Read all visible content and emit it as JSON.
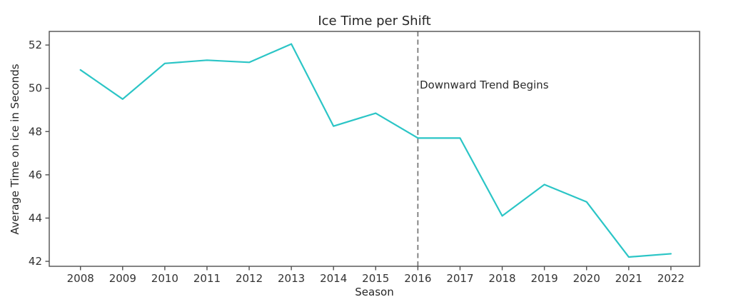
{
  "chart_data": {
    "type": "line",
    "title": "Ice Time per Shift",
    "xlabel": "Season",
    "ylabel": "Average Time on ice in Seconds",
    "categories": [
      2008,
      2009,
      2010,
      2011,
      2012,
      2013,
      2014,
      2015,
      2016,
      2017,
      2018,
      2019,
      2020,
      2021,
      2022
    ],
    "values": [
      50.85,
      49.5,
      51.15,
      51.3,
      51.2,
      52.05,
      48.25,
      48.85,
      47.7,
      47.7,
      44.1,
      45.55,
      44.75,
      42.2,
      42.35
    ],
    "y_ticks": [
      42,
      44,
      46,
      48,
      50,
      52
    ],
    "xlim": [
      2007.26,
      2022.68
    ],
    "ylim": [
      41.77,
      52.63
    ],
    "grid": false,
    "legend": "none",
    "line_color": "#2bc5c6",
    "axis_color": "#4f4f4f",
    "vline": {
      "x": 2016,
      "style": "dashed",
      "color": "#7a7a7a"
    },
    "annotation": {
      "text": "Downward Trend Begins",
      "x": 2016,
      "y": 50.1
    }
  }
}
